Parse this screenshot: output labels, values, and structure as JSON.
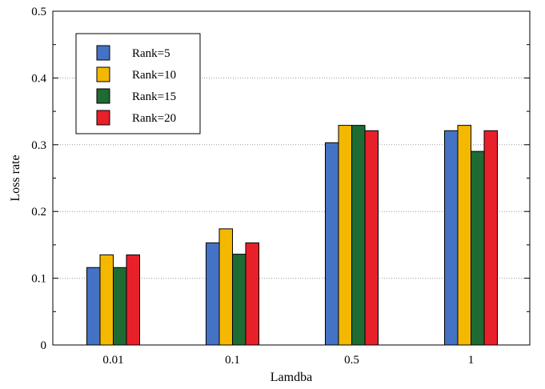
{
  "chart_data": {
    "type": "bar",
    "xlabel": "Lamdba",
    "ylabel": "Loss rate",
    "categories": [
      "0.01",
      "0.1",
      "0.5",
      "1"
    ],
    "ylim": [
      0,
      0.5
    ],
    "yticks": [
      "0",
      "0.1",
      "0.2",
      "0.3",
      "0.4",
      "0.5"
    ],
    "grid": "horizontal-dotted",
    "legend_position": "top-left",
    "series": [
      {
        "name": "Rank=5",
        "color": "#4472c4",
        "values": [
          0.116,
          0.153,
          0.303,
          0.321
        ]
      },
      {
        "name": "Rank=10",
        "color": "#f5b800",
        "values": [
          0.135,
          0.174,
          0.329,
          0.329
        ]
      },
      {
        "name": "Rank=15",
        "color": "#1e6b34",
        "values": [
          0.116,
          0.136,
          0.329,
          0.29
        ]
      },
      {
        "name": "Rank=20",
        "color": "#e8202a",
        "values": [
          0.135,
          0.153,
          0.321,
          0.321
        ]
      }
    ]
  }
}
